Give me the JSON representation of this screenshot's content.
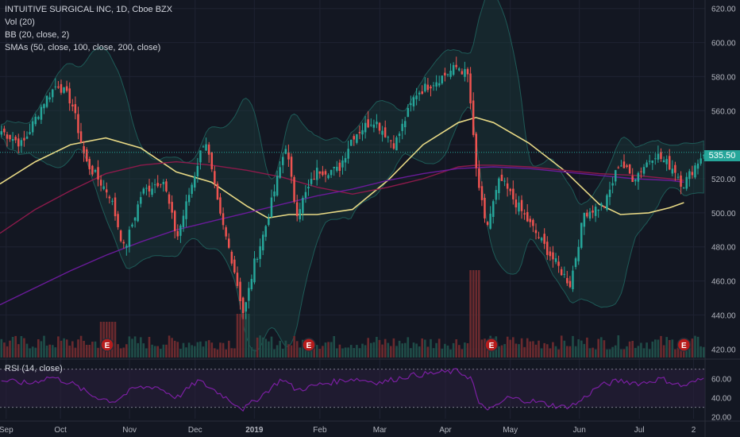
{
  "legend": {
    "title": "INTUITIVE SURGICAL INC, 1D, Cboe BZX",
    "vol": "Vol (20)",
    "bb": "BB (20, close, 2)",
    "smas": "SMAs (50, close, 100, close, 200, close)",
    "rsi": "RSI (14, close)"
  },
  "last_price_label": "535.50",
  "colors": {
    "background": "#131722",
    "up": "#26a69a",
    "down": "#ef5350",
    "sma50": "#e8d985",
    "sma100": "#8c1a4b",
    "sma200": "#6a1b9a",
    "bb_band": "#1e5a57",
    "rsi_line": "#7b1fa2",
    "rsi_band": "#2a1f3d",
    "earnings": "#b71c1c"
  },
  "chart_data": [
    {
      "type": "candlestick",
      "title": "INTUITIVE SURGICAL INC, 1D, Cboe BZX",
      "x_ticks": [
        "Sep",
        "Oct",
        "Nov",
        "Dec",
        "2019",
        "Feb",
        "Mar",
        "Apr",
        "May",
        "Jun",
        "Jul",
        "2"
      ],
      "y_ticks": [
        420,
        440,
        460,
        480,
        500,
        520,
        540,
        560,
        580,
        600,
        620
      ],
      "ylim": [
        415,
        625
      ],
      "last_price": 535.5,
      "close_keypoints": [
        {
          "t": 0,
          "v": 548
        },
        {
          "t": 0.03,
          "v": 540
        },
        {
          "t": 0.06,
          "v": 565
        },
        {
          "t": 0.08,
          "v": 576
        },
        {
          "t": 0.1,
          "v": 565
        },
        {
          "t": 0.12,
          "v": 530
        },
        {
          "t": 0.155,
          "v": 510
        },
        {
          "t": 0.175,
          "v": 478
        },
        {
          "t": 0.2,
          "v": 512
        },
        {
          "t": 0.23,
          "v": 520
        },
        {
          "t": 0.25,
          "v": 485
        },
        {
          "t": 0.27,
          "v": 515
        },
        {
          "t": 0.29,
          "v": 545
        },
        {
          "t": 0.31,
          "v": 500
        },
        {
          "t": 0.33,
          "v": 470
        },
        {
          "t": 0.345,
          "v": 440
        },
        {
          "t": 0.36,
          "v": 470
        },
        {
          "t": 0.375,
          "v": 490
        },
        {
          "t": 0.405,
          "v": 540
        },
        {
          "t": 0.42,
          "v": 500
        },
        {
          "t": 0.45,
          "v": 525
        },
        {
          "t": 0.48,
          "v": 525
        },
        {
          "t": 0.5,
          "v": 545
        },
        {
          "t": 0.53,
          "v": 555
        },
        {
          "t": 0.56,
          "v": 540
        },
        {
          "t": 0.59,
          "v": 570
        },
        {
          "t": 0.62,
          "v": 578
        },
        {
          "t": 0.65,
          "v": 586
        },
        {
          "t": 0.665,
          "v": 580
        },
        {
          "t": 0.675,
          "v": 528
        },
        {
          "t": 0.69,
          "v": 490
        },
        {
          "t": 0.71,
          "v": 520
        },
        {
          "t": 0.75,
          "v": 495
        },
        {
          "t": 0.79,
          "v": 470
        },
        {
          "t": 0.81,
          "v": 458
        },
        {
          "t": 0.83,
          "v": 500
        },
        {
          "t": 0.86,
          "v": 505
        },
        {
          "t": 0.88,
          "v": 530
        },
        {
          "t": 0.9,
          "v": 520
        },
        {
          "t": 0.93,
          "v": 535
        },
        {
          "t": 0.96,
          "v": 525
        },
        {
          "t": 0.97,
          "v": 516
        },
        {
          "t": 1,
          "v": 535.5
        }
      ],
      "series": [
        {
          "name": "SMA 50",
          "points": [
            [
              0,
              517
            ],
            [
              0.05,
              530
            ],
            [
              0.1,
              540
            ],
            [
              0.15,
              544
            ],
            [
              0.2,
              538
            ],
            [
              0.25,
              524
            ],
            [
              0.3,
              518
            ],
            [
              0.35,
              504
            ],
            [
              0.38,
              497
            ],
            [
              0.41,
              499
            ],
            [
              0.45,
              499
            ],
            [
              0.5,
              502
            ],
            [
              0.55,
              519
            ],
            [
              0.6,
              540
            ],
            [
              0.65,
              553
            ],
            [
              0.675,
              556
            ],
            [
              0.7,
              553
            ],
            [
              0.75,
              541
            ],
            [
              0.8,
              525
            ],
            [
              0.85,
              505
            ],
            [
              0.88,
              499
            ],
            [
              0.92,
              500
            ],
            [
              0.95,
              503
            ],
            [
              0.97,
              506
            ]
          ]
        },
        {
          "name": "SMA 100",
          "points": [
            [
              0,
              488
            ],
            [
              0.05,
              502
            ],
            [
              0.1,
              513
            ],
            [
              0.15,
              523
            ],
            [
              0.2,
              528
            ],
            [
              0.25,
              530
            ],
            [
              0.3,
              528
            ],
            [
              0.35,
              525
            ],
            [
              0.4,
              521
            ],
            [
              0.45,
              515
            ],
            [
              0.5,
              511
            ],
            [
              0.55,
              515
            ],
            [
              0.6,
              520
            ],
            [
              0.65,
              527
            ],
            [
              0.675,
              528
            ],
            [
              0.7,
              528
            ],
            [
              0.75,
              527
            ],
            [
              0.8,
              525
            ],
            [
              0.85,
              523
            ],
            [
              0.9,
              522
            ],
            [
              0.95,
              520
            ],
            [
              0.97,
              519
            ]
          ]
        },
        {
          "name": "SMA 200",
          "points": [
            [
              0,
              446
            ],
            [
              0.05,
              456
            ],
            [
              0.1,
              466
            ],
            [
              0.15,
              475
            ],
            [
              0.2,
              483
            ],
            [
              0.25,
              490
            ],
            [
              0.3,
              495
            ],
            [
              0.35,
              500
            ],
            [
              0.4,
              505
            ],
            [
              0.45,
              510
            ],
            [
              0.5,
              514
            ],
            [
              0.55,
              519
            ],
            [
              0.6,
              523
            ],
            [
              0.65,
              526
            ],
            [
              0.7,
              527
            ],
            [
              0.75,
              526
            ],
            [
              0.8,
              524
            ],
            [
              0.85,
              522
            ],
            [
              0.9,
              520
            ],
            [
              0.95,
              519
            ],
            [
              0.97,
              518
            ]
          ]
        }
      ]
    },
    {
      "type": "line",
      "title": "RSI (14, close)",
      "y_ticks": [
        20,
        40,
        60
      ],
      "ylim": [
        18,
        78
      ],
      "band": [
        30,
        70
      ],
      "rsi_keypoints": [
        {
          "t": 0,
          "v": 58
        },
        {
          "t": 0.04,
          "v": 55
        },
        {
          "t": 0.07,
          "v": 62
        },
        {
          "t": 0.1,
          "v": 55
        },
        {
          "t": 0.13,
          "v": 42
        },
        {
          "t": 0.16,
          "v": 36
        },
        {
          "t": 0.19,
          "v": 50
        },
        {
          "t": 0.22,
          "v": 52
        },
        {
          "t": 0.25,
          "v": 40
        },
        {
          "t": 0.28,
          "v": 58
        },
        {
          "t": 0.31,
          "v": 45
        },
        {
          "t": 0.345,
          "v": 28
        },
        {
          "t": 0.37,
          "v": 42
        },
        {
          "t": 0.4,
          "v": 60
        },
        {
          "t": 0.42,
          "v": 48
        },
        {
          "t": 0.46,
          "v": 55
        },
        {
          "t": 0.5,
          "v": 60
        },
        {
          "t": 0.54,
          "v": 56
        },
        {
          "t": 0.58,
          "v": 63
        },
        {
          "t": 0.62,
          "v": 66
        },
        {
          "t": 0.65,
          "v": 68
        },
        {
          "t": 0.67,
          "v": 60
        },
        {
          "t": 0.68,
          "v": 32
        },
        {
          "t": 0.7,
          "v": 28
        },
        {
          "t": 0.72,
          "v": 40
        },
        {
          "t": 0.76,
          "v": 36
        },
        {
          "t": 0.8,
          "v": 30
        },
        {
          "t": 0.82,
          "v": 34
        },
        {
          "t": 0.85,
          "v": 52
        },
        {
          "t": 0.88,
          "v": 58
        },
        {
          "t": 0.91,
          "v": 55
        },
        {
          "t": 0.94,
          "v": 60
        },
        {
          "t": 0.97,
          "v": 52
        },
        {
          "t": 1,
          "v": 60
        }
      ]
    }
  ],
  "earnings_markers": {
    "label": "E",
    "positions": [
      0.152,
      0.438,
      0.697,
      0.97
    ]
  }
}
